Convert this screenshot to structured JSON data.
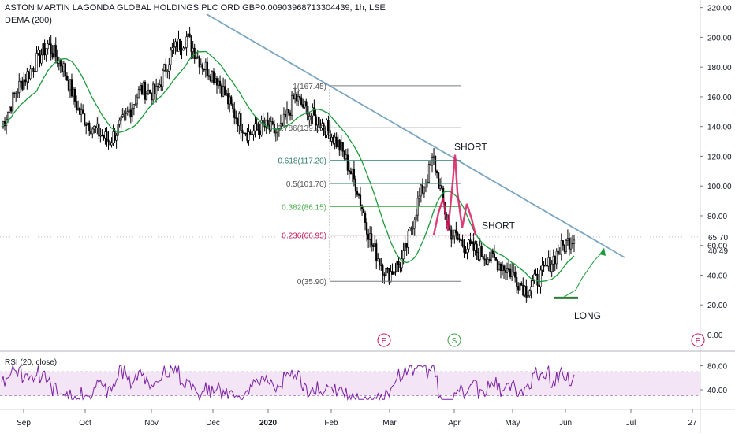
{
  "header": {
    "title": "ASTON MARTIN LAGONDA GLOBAL HOLDINGS PLC ORD GBP0.00903968713304439, 1h, LSE",
    "indicator": "DEMA (200)"
  },
  "rsi_label": "RSI (20, close)",
  "colors": {
    "candle": "#000000",
    "dema": "#1a9b3a",
    "trendline": "#7aa6c2",
    "fib_line": "#787b86",
    "fib_618": "#2e7d6b",
    "fib_382": "#4caf50",
    "fib_236": "#c2185b",
    "highlight": "#d81b60",
    "rsi_line": "#7b1fa2",
    "rsi_band": "#f3e5f5",
    "event_e": "#c2185b",
    "event_s": "#43a047"
  },
  "chart_data": [
    {
      "type": "candlestick",
      "title": "ASTON MARTIN LAGONDA GLOBAL HOLDINGS PLC ORD GBP0.00903968713304439, 1h, LSE",
      "ylim": [
        0,
        220
      ],
      "y_ticks": [
        "220.00",
        "200.00",
        "180.00",
        "160.00",
        "140.00",
        "120.00",
        "100.00",
        "80.00",
        "60.00",
        "40.00",
        "20.00",
        "0.00"
      ],
      "x_ticks": [
        "Sep",
        "Oct",
        "Nov",
        "Dec",
        "2020",
        "Feb",
        "Mar",
        "Apr",
        "May",
        "Jun",
        "Jul",
        "27"
      ],
      "price_path": [
        [
          "Sep",
          140
        ],
        [
          "",
          165
        ],
        [
          "",
          180
        ],
        [
          "",
          195
        ],
        [
          "Oct",
          180
        ],
        [
          "",
          150
        ],
        [
          "",
          138
        ],
        [
          "Nov",
          130
        ],
        [
          "",
          145
        ],
        [
          "",
          165
        ],
        [
          "",
          162
        ],
        [
          "Dec",
          190
        ],
        [
          "",
          200
        ],
        [
          "",
          182
        ],
        [
          "",
          172
        ],
        [
          "",
          150
        ],
        [
          "2020",
          135
        ],
        [
          "",
          140
        ],
        [
          "",
          135
        ],
        [
          "Feb",
          160
        ],
        [
          "",
          148
        ],
        [
          "",
          140
        ],
        [
          "",
          125
        ],
        [
          "Mar",
          100
        ],
        [
          "",
          60
        ],
        [
          "",
          40
        ],
        [
          "",
          50
        ],
        [
          "",
          90
        ],
        [
          "Apr",
          118
        ],
        [
          "",
          70
        ],
        [
          "",
          60
        ],
        [
          "",
          55
        ],
        [
          "May",
          50
        ],
        [
          "",
          42
        ],
        [
          "",
          30
        ],
        [
          "",
          40
        ],
        [
          "Jun",
          55
        ],
        [
          "",
          65.7
        ]
      ],
      "current_price": "65.70",
      "countdown": "40:49",
      "series": [
        {
          "name": "DEMA (200)"
        }
      ],
      "fibonacci": [
        {
          "label": "1(167.45)",
          "value": 167.45
        },
        {
          "label": "0.786(139.20)",
          "value": 139.2
        },
        {
          "label": "0.618(117.20)",
          "value": 117.2
        },
        {
          "label": "0.5(101.70)",
          "value": 101.7
        },
        {
          "label": "0.382(86.15)",
          "value": 86.15
        },
        {
          "label": "0.236(66.95)",
          "value": 66.95
        },
        {
          "label": "0(35.90)",
          "value": 35.9
        }
      ],
      "annotations": [
        {
          "text": "SHORT",
          "value": 121
        },
        {
          "text": "SHORT",
          "value": 68
        },
        {
          "text": "LONG",
          "value": 20
        }
      ],
      "events": [
        "E",
        "S",
        "E"
      ]
    },
    {
      "type": "line",
      "title": "RSI (20, close)",
      "ylim": [
        20,
        85
      ],
      "y_ticks": [
        "80.00",
        "40.00"
      ],
      "band": [
        30,
        70
      ]
    }
  ]
}
